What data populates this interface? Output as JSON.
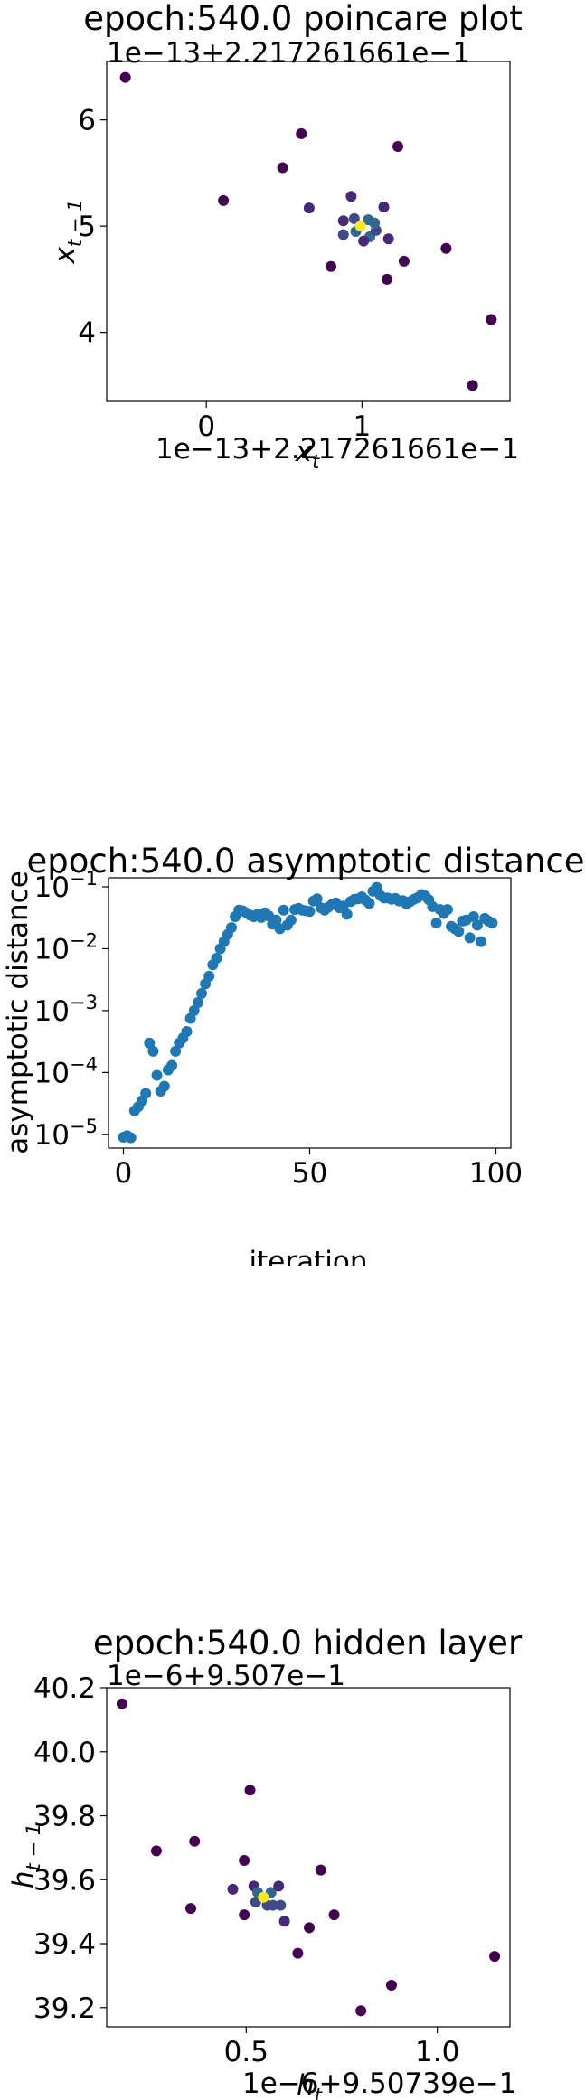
{
  "chart_data": [
    {
      "type": "scatter",
      "title": "epoch:540.0 poincare plot",
      "xlabel": "x_t",
      "ylabel": "x_{t-1}",
      "x_offset_label": "1e−13+2.217261661e−1",
      "y_offset_label": "1e−13+2.217261661e−1",
      "xlim": [
        -0.64,
        1.95
      ],
      "ylim": [
        3.35,
        6.55
      ],
      "x_ticks": [
        {
          "v": 0,
          "label": "0"
        },
        {
          "v": 1,
          "label": "1"
        }
      ],
      "y_ticks": [
        {
          "v": 4,
          "label": "4"
        },
        {
          "v": 5,
          "label": "5"
        },
        {
          "v": 6,
          "label": "6"
        }
      ],
      "colormap": [
        "#440154",
        "#482878",
        "#3e4a89",
        "#31688e",
        "#26828e",
        "#1f9e89",
        "#35b779",
        "#6ece58",
        "#b5de2b",
        "#fde725"
      ],
      "points": [
        {
          "x": -0.52,
          "y": 6.4,
          "c": 0.0
        },
        {
          "x": 0.11,
          "y": 5.24,
          "c": 0.02
        },
        {
          "x": 0.49,
          "y": 5.55,
          "c": 0.03
        },
        {
          "x": 0.61,
          "y": 5.87,
          "c": 0.02
        },
        {
          "x": 0.66,
          "y": 5.17,
          "c": 0.06
        },
        {
          "x": 0.8,
          "y": 4.62,
          "c": 0.04
        },
        {
          "x": 0.88,
          "y": 5.05,
          "c": 0.12
        },
        {
          "x": 0.88,
          "y": 4.92,
          "c": 0.18
        },
        {
          "x": 0.93,
          "y": 5.28,
          "c": 0.1
        },
        {
          "x": 0.95,
          "y": 5.07,
          "c": 0.25
        },
        {
          "x": 0.96,
          "y": 4.95,
          "c": 0.35
        },
        {
          "x": 1.04,
          "y": 5.06,
          "c": 0.3
        },
        {
          "x": 1.05,
          "y": 4.9,
          "c": 0.28
        },
        {
          "x": 1.09,
          "y": 4.96,
          "c": 0.2
        },
        {
          "x": 1.08,
          "y": 5.03,
          "c": 0.32
        },
        {
          "x": 1.01,
          "y": 4.86,
          "c": 0.15
        },
        {
          "x": 1.14,
          "y": 5.18,
          "c": 0.08
        },
        {
          "x": 1.17,
          "y": 4.88,
          "c": 0.1
        },
        {
          "x": 1.16,
          "y": 4.5,
          "c": 0.04
        },
        {
          "x": 1.23,
          "y": 5.75,
          "c": 0.02
        },
        {
          "x": 1.27,
          "y": 4.67,
          "c": 0.05
        },
        {
          "x": 1.54,
          "y": 4.79,
          "c": 0.03
        },
        {
          "x": 1.71,
          "y": 3.5,
          "c": 0.01
        },
        {
          "x": 1.83,
          "y": 4.12,
          "c": 0.01
        },
        {
          "x": 0.99,
          "y": 5.0,
          "c": 1.0
        }
      ]
    },
    {
      "type": "scatter",
      "title": "epoch:540.0 asymptotic distance",
      "xlabel": "iteration",
      "ylabel": "asymptotic distance",
      "yscale": "log",
      "xlim": [
        -4,
        104
      ],
      "ylim": [
        6e-06,
        0.14
      ],
      "color": "#1f77b4",
      "x_ticks": [
        {
          "v": 0,
          "label": "0"
        },
        {
          "v": 50,
          "label": "50"
        },
        {
          "v": 100,
          "label": "100"
        }
      ],
      "y_ticks": [
        {
          "v": 1e-05,
          "base": "10",
          "exp": "−5"
        },
        {
          "v": 0.0001,
          "base": "10",
          "exp": "−4"
        },
        {
          "v": 0.001,
          "base": "10",
          "exp": "−3"
        },
        {
          "v": 0.01,
          "base": "10",
          "exp": "−2"
        },
        {
          "v": 0.1,
          "base": "10",
          "exp": "−1"
        }
      ],
      "x": [
        0,
        1,
        2,
        3,
        4,
        5,
        6,
        7,
        8,
        9,
        10,
        11,
        12,
        13,
        14,
        15,
        16,
        17,
        18,
        19,
        20,
        21,
        22,
        23,
        24,
        25,
        26,
        27,
        28,
        29,
        30,
        31,
        32,
        33,
        34,
        35,
        36,
        37,
        38,
        39,
        40,
        41,
        42,
        43,
        44,
        45,
        46,
        47,
        48,
        49,
        50,
        51,
        52,
        53,
        54,
        55,
        56,
        57,
        58,
        59,
        60,
        61,
        62,
        63,
        64,
        65,
        66,
        67,
        68,
        69,
        70,
        71,
        72,
        73,
        74,
        75,
        76,
        77,
        78,
        79,
        80,
        81,
        82,
        83,
        84,
        85,
        86,
        87,
        88,
        89,
        90,
        91,
        92,
        93,
        94,
        95,
        96,
        97,
        98,
        99
      ],
      "y": [
        9e-06,
        9.5e-06,
        8.8e-06,
        2.4e-05,
        2.8e-05,
        3.5e-05,
        4.6e-05,
        0.0003,
        0.00022,
        9e-05,
        5e-05,
        6e-05,
        0.00011,
        0.00013,
        0.00022,
        0.0003,
        0.00036,
        0.00046,
        0.00075,
        0.001,
        0.00135,
        0.0019,
        0.0027,
        0.0036,
        0.0055,
        0.007,
        0.01,
        0.013,
        0.017,
        0.022,
        0.033,
        0.042,
        0.041,
        0.038,
        0.035,
        0.033,
        0.036,
        0.032,
        0.038,
        0.034,
        0.025,
        0.029,
        0.021,
        0.042,
        0.024,
        0.029,
        0.043,
        0.045,
        0.042,
        0.041,
        0.04,
        0.059,
        0.064,
        0.046,
        0.042,
        0.047,
        0.052,
        0.055,
        0.046,
        0.049,
        0.036,
        0.058,
        0.063,
        0.064,
        0.069,
        0.061,
        0.054,
        0.085,
        0.098,
        0.072,
        0.066,
        0.066,
        0.063,
        0.065,
        0.059,
        0.06,
        0.053,
        0.058,
        0.063,
        0.067,
        0.075,
        0.071,
        0.062,
        0.048,
        0.026,
        0.043,
        0.037,
        0.043,
        0.023,
        0.021,
        0.019,
        0.028,
        0.029,
        0.015,
        0.033,
        0.024,
        0.013,
        0.031,
        0.028,
        0.026
      ]
    },
    {
      "type": "scatter",
      "title": "epoch:540.0 hidden layer",
      "xlabel": "h_t",
      "ylabel": "h_{t-1}",
      "x_offset_label": "1e−6+9.50739e−1",
      "y_offset_label": "1e−6+9.507e−1",
      "xlim": [
        0.135,
        1.19
      ],
      "ylim": [
        39.14,
        40.2
      ],
      "x_ticks": [
        {
          "v": 0.5,
          "label": "0.5"
        },
        {
          "v": 1.0,
          "label": "1.0"
        }
      ],
      "y_ticks": [
        {
          "v": 39.2,
          "label": "39.2"
        },
        {
          "v": 39.4,
          "label": "39.4"
        },
        {
          "v": 39.6,
          "label": "39.6"
        },
        {
          "v": 39.8,
          "label": "39.8"
        },
        {
          "v": 40.0,
          "label": "40.0"
        },
        {
          "v": 40.2,
          "label": "40.2"
        }
      ],
      "colormap": [
        "#440154",
        "#482878",
        "#3e4a89",
        "#31688e",
        "#26828e",
        "#1f9e89",
        "#35b779",
        "#6ece58",
        "#b5de2b",
        "#fde725"
      ],
      "points": [
        {
          "x": 0.175,
          "y": 40.15,
          "c": 0.0
        },
        {
          "x": 0.265,
          "y": 39.69,
          "c": 0.02
        },
        {
          "x": 0.355,
          "y": 39.51,
          "c": 0.03
        },
        {
          "x": 0.365,
          "y": 39.72,
          "c": 0.02
        },
        {
          "x": 0.465,
          "y": 39.57,
          "c": 0.06
        },
        {
          "x": 0.495,
          "y": 39.66,
          "c": 0.04
        },
        {
          "x": 0.495,
          "y": 39.49,
          "c": 0.05
        },
        {
          "x": 0.51,
          "y": 39.88,
          "c": 0.02
        },
        {
          "x": 0.52,
          "y": 39.58,
          "c": 0.12
        },
        {
          "x": 0.525,
          "y": 39.53,
          "c": 0.22
        },
        {
          "x": 0.53,
          "y": 39.56,
          "c": 0.3
        },
        {
          "x": 0.555,
          "y": 39.52,
          "c": 0.25
        },
        {
          "x": 0.565,
          "y": 39.56,
          "c": 0.35
        },
        {
          "x": 0.57,
          "y": 39.52,
          "c": 0.18
        },
        {
          "x": 0.585,
          "y": 39.58,
          "c": 0.1
        },
        {
          "x": 0.59,
          "y": 39.52,
          "c": 0.2
        },
        {
          "x": 0.6,
          "y": 39.47,
          "c": 0.08
        },
        {
          "x": 0.635,
          "y": 39.37,
          "c": 0.04
        },
        {
          "x": 0.665,
          "y": 39.45,
          "c": 0.05
        },
        {
          "x": 0.695,
          "y": 39.63,
          "c": 0.03
        },
        {
          "x": 0.73,
          "y": 39.49,
          "c": 0.04
        },
        {
          "x": 0.8,
          "y": 39.19,
          "c": 0.01
        },
        {
          "x": 0.88,
          "y": 39.27,
          "c": 0.02
        },
        {
          "x": 1.15,
          "y": 39.36,
          "c": 0.01
        },
        {
          "x": 0.545,
          "y": 39.545,
          "c": 1.0
        }
      ]
    }
  ]
}
